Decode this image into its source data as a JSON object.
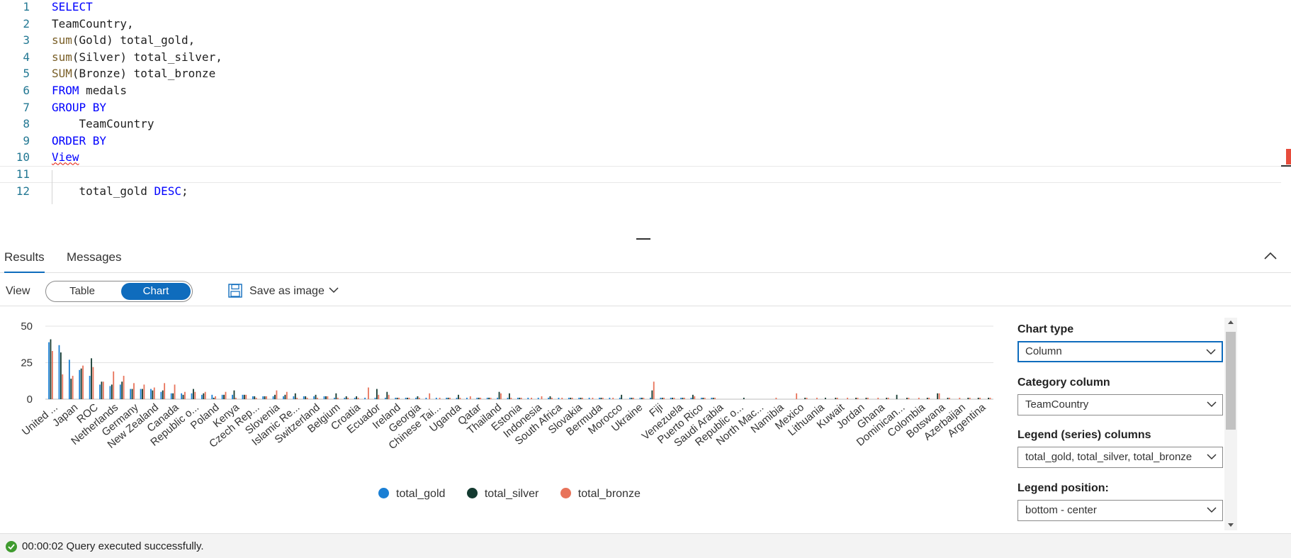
{
  "editor": {
    "lines": [
      {
        "num": "1",
        "tokens": [
          {
            "t": "SELECT",
            "c": "kw"
          }
        ]
      },
      {
        "num": "2",
        "tokens": [
          {
            "t": "TeamCountry,",
            "c": ""
          }
        ]
      },
      {
        "num": "3",
        "tokens": [
          {
            "t": "sum",
            "c": "fn"
          },
          {
            "t": "(Gold) total_gold,",
            "c": ""
          }
        ]
      },
      {
        "num": "4",
        "tokens": [
          {
            "t": "sum",
            "c": "fn"
          },
          {
            "t": "(Silver) total_silver,",
            "c": ""
          }
        ]
      },
      {
        "num": "5",
        "tokens": [
          {
            "t": "SUM",
            "c": "fn"
          },
          {
            "t": "(Bronze) total_bronze",
            "c": ""
          }
        ]
      },
      {
        "num": "6",
        "tokens": [
          {
            "t": "FROM",
            "c": "kw"
          },
          {
            "t": " medals",
            "c": ""
          }
        ]
      },
      {
        "num": "7",
        "tokens": [
          {
            "t": "GROUP BY",
            "c": "kw"
          }
        ]
      },
      {
        "num": "8",
        "tokens": [
          {
            "t": "    TeamCountry",
            "c": ""
          }
        ]
      },
      {
        "num": "9",
        "tokens": [
          {
            "t": "ORDER BY",
            "c": "kw"
          }
        ]
      },
      {
        "num": "10",
        "tokens": [
          {
            "t": "View",
            "c": "kw err"
          }
        ]
      },
      {
        "num": "11",
        "tokens": []
      },
      {
        "num": "12",
        "tokens": [
          {
            "t": "    total_gold ",
            "c": ""
          },
          {
            "t": "DESC",
            "c": "kw"
          },
          {
            "t": ";",
            "c": ""
          }
        ]
      }
    ],
    "active_line": 10
  },
  "results_tabs": {
    "results": "Results",
    "messages": "Messages"
  },
  "viewbar": {
    "view_label": "View",
    "table_label": "Table",
    "chart_label": "Chart",
    "save_label": "Save as image"
  },
  "settings": {
    "chart_type_label": "Chart type",
    "chart_type_value": "Column",
    "category_label": "Category column",
    "category_value": "TeamCountry",
    "legend_cols_label": "Legend (series) columns",
    "legend_cols_value": "total_gold, total_silver, total_bronze",
    "legend_pos_label": "Legend position:",
    "legend_pos_value": "bottom - center"
  },
  "status": {
    "text": "00:00:02 Query executed successfully."
  },
  "colors": {
    "accent": "#0f6cbd",
    "gold": "#1a7fd4",
    "silver": "#133a30",
    "bronze": "#e8735a",
    "success": "#3f9b2f"
  },
  "chart_data": {
    "type": "bar",
    "ylim": [
      0,
      50
    ],
    "yticks": [
      0,
      25,
      50
    ],
    "grid": true,
    "legend_position": "bottom-center",
    "labeled_categories": [
      "United ...",
      "Japan",
      "ROC",
      "Netherlands",
      "Germany",
      "New Zealand",
      "Canada",
      "Republic o...",
      "Poland",
      "Kenya",
      "Czech Rep...",
      "Slovenia",
      "Islamic Re...",
      "Switzerland",
      "Belgium",
      "Croatia",
      "Ecuador",
      "Ireland",
      "Georgia",
      "Chinese Tai...",
      "Uganda",
      "Qatar",
      "Thailand",
      "Estonia",
      "Indonesia",
      "South Africa",
      "Slovakia",
      "Bermuda",
      "Morocco",
      "Ukraine",
      "Fiji",
      "Venezuela",
      "Puerto Rico",
      "Saudi Arabia",
      "Republic o...",
      "North Mac...",
      "Namibia",
      "Mexico",
      "Lithuania",
      "Kuwait",
      "Jordan",
      "Ghana",
      "Dominican...",
      "Colombia",
      "Botswana",
      "Azerbaijan",
      "Argentina"
    ],
    "series": [
      {
        "name": "total_gold",
        "values": [
          39,
          37,
          27,
          20,
          16,
          10,
          9,
          10,
          7,
          7,
          7,
          5,
          4,
          4,
          4,
          3,
          3,
          3,
          3,
          3,
          2,
          2,
          2,
          2,
          2,
          2,
          2,
          2,
          1,
          1,
          1,
          1,
          1,
          1,
          1,
          1,
          1,
          1,
          1,
          1,
          1,
          1,
          1,
          1,
          1,
          1,
          1,
          1,
          1,
          1,
          1,
          1,
          1,
          1,
          1,
          1,
          1,
          1,
          1,
          1,
          1,
          1,
          1,
          1,
          1,
          1,
          0,
          0,
          0,
          0,
          0,
          0,
          0,
          0,
          0,
          0,
          0,
          0,
          0,
          0,
          0,
          0,
          0,
          0,
          0,
          0,
          0,
          0,
          0,
          0,
          0,
          0,
          0
        ]
      },
      {
        "name": "total_silver",
        "values": [
          41,
          32,
          14,
          21,
          28,
          12,
          10,
          12,
          7,
          7,
          6,
          6,
          4,
          3,
          7,
          4,
          1,
          3,
          6,
          3,
          2,
          2,
          3,
          3,
          4,
          2,
          3,
          2,
          4,
          2,
          2,
          0,
          7,
          5,
          1,
          1,
          2,
          0,
          0,
          1,
          3,
          0,
          1,
          1,
          5,
          4,
          1,
          0,
          0,
          2,
          0,
          1,
          1,
          0,
          1,
          0,
          3,
          1,
          1,
          6,
          1,
          1,
          1,
          3,
          1,
          1,
          0,
          0,
          1,
          0,
          0,
          0,
          0,
          0,
          1,
          0,
          1,
          1,
          0,
          1,
          1,
          0,
          1,
          3,
          1,
          0,
          1,
          4,
          1,
          0,
          1,
          1,
          1
        ]
      },
      {
        "name": "total_bronze",
        "values": [
          33,
          17,
          16,
          23,
          22,
          12,
          19,
          16,
          11,
          10,
          8,
          11,
          10,
          5,
          5,
          5,
          2,
          5,
          1,
          3,
          1,
          2,
          6,
          5,
          1,
          1,
          1,
          2,
          1,
          1,
          1,
          8,
          3,
          3,
          1,
          1,
          1,
          4,
          1,
          1,
          1,
          2,
          1,
          1,
          4,
          1,
          1,
          1,
          2,
          1,
          1,
          1,
          1,
          1,
          1,
          1,
          0,
          1,
          1,
          12,
          1,
          1,
          1,
          2,
          1,
          1,
          0,
          0,
          0,
          0,
          0,
          1,
          0,
          4,
          1,
          1,
          0,
          1,
          1,
          1,
          1,
          1,
          1,
          0,
          1,
          1,
          1,
          4,
          1,
          1,
          1,
          1,
          1
        ]
      }
    ]
  }
}
